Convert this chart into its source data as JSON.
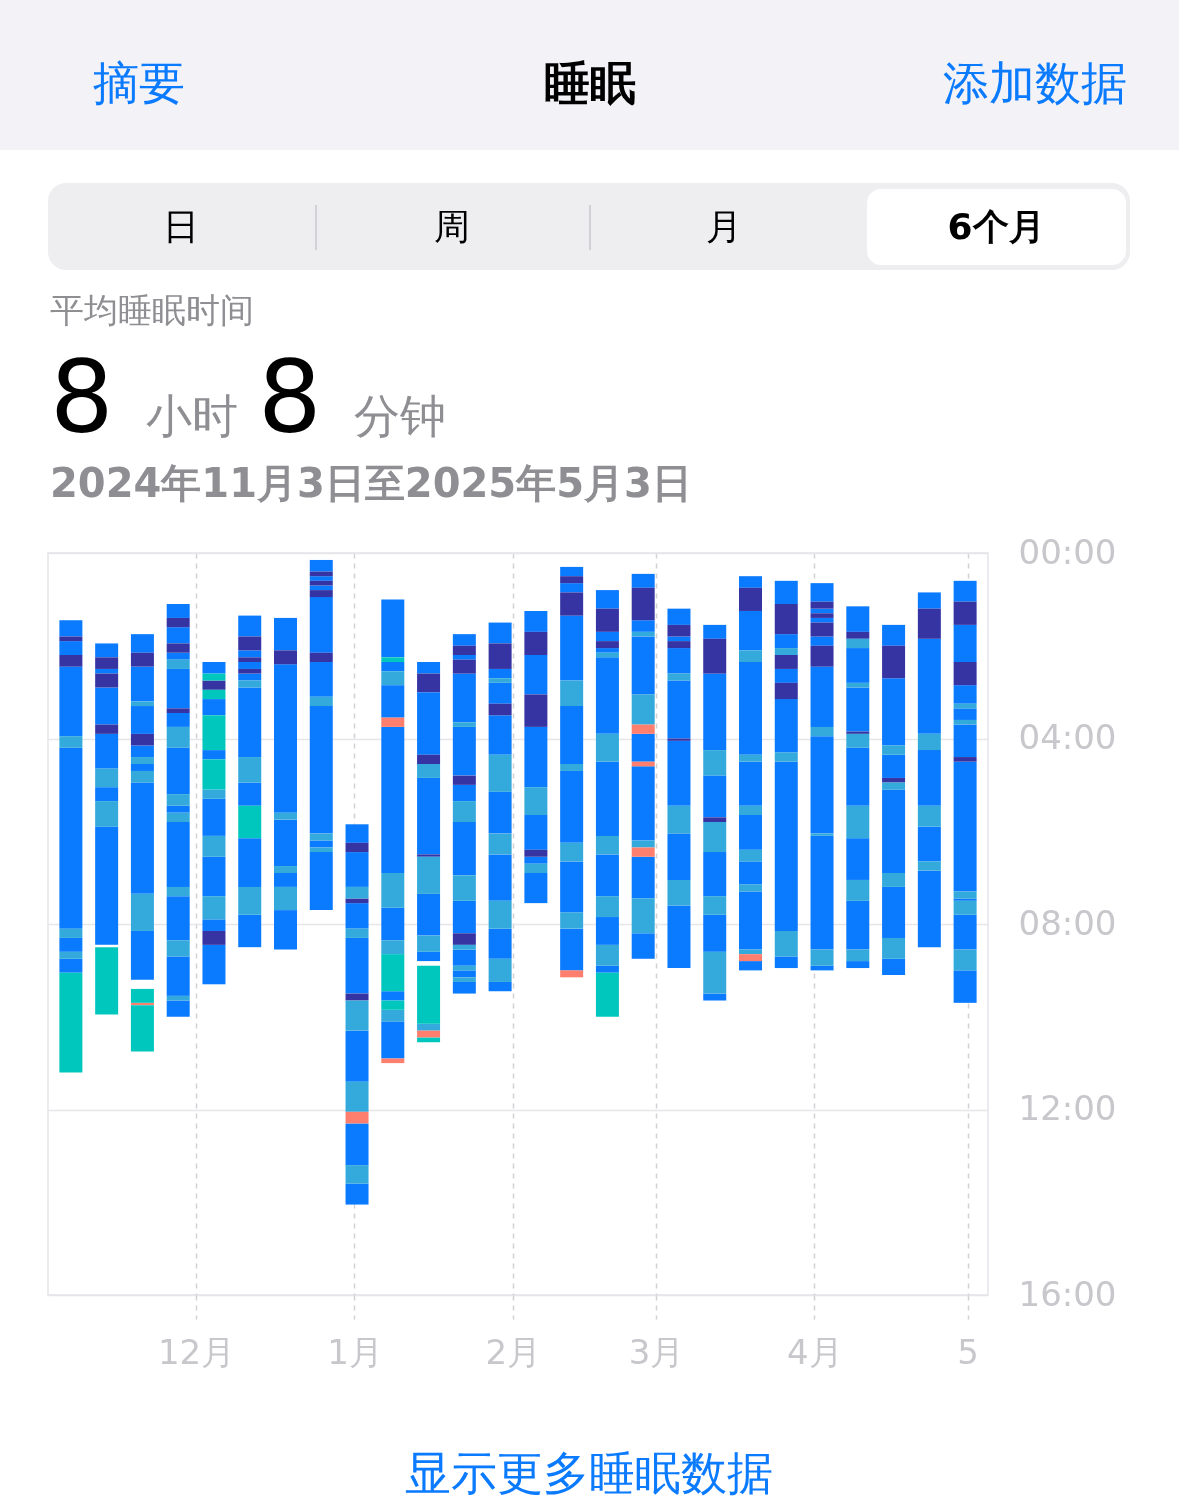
{
  "chart_data": {
    "type": "bar",
    "title": "睡眠",
    "annotations": [
      "摘要",
      "添加数据",
      "日",
      "周",
      "月",
      "6个月",
      "平均睡眠时间",
      "8 小时 8 分钟",
      "2024年11月3日至2025年5月3日",
      "显示更多睡眠数据"
    ],
    "x": [
      "2024-11-06T12:00",
      "2024-11-13T12:00",
      "2024-11-20T12:00",
      "2024-11-27T12:00",
      "2024-12-04T12:00",
      "2024-12-11T12:00",
      "2024-12-18T12:00",
      "2024-12-25T12:00",
      "2025-01-01T12:00",
      "2025-01-08T12:00",
      "2025-01-15T12:00",
      "2025-01-22T12:00",
      "2025-01-29T12:00",
      "2025-02-05T12:00",
      "2025-02-12T12:00",
      "2025-02-19T12:00",
      "2025-02-26T12:00",
      "2025-03-05T12:00",
      "2025-03-12T12:00",
      "2025-03-19T12:00",
      "2025-03-26T12:00",
      "2025-04-02T12:00",
      "2025-04-09T12:00",
      "2025-04-16T12:00",
      "2025-04-23T12:00",
      "2025-04-30T12:00"
    ],
    "xlim": [
      "2024-11-03",
      "2025-05-04"
    ],
    "xticks": [
      {
        "value": "2024-12-01",
        "label": "12月"
      },
      {
        "value": "2025-01-01",
        "label": "1月"
      },
      {
        "value": "2025-02-01",
        "label": "2月"
      },
      {
        "value": "2025-03-01",
        "label": "3月"
      },
      {
        "value": "2025-04-01",
        "label": "4月"
      },
      {
        "value": "2025-05-01",
        "label": "5"
      }
    ],
    "ylim": [
      16,
      0
    ],
    "yticks": [
      {
        "value": 0,
        "label": "00:00"
      },
      {
        "value": 4,
        "label": "04:00"
      },
      {
        "value": 8,
        "label": "08:00"
      },
      {
        "value": 12,
        "label": "12:00"
      },
      {
        "value": 16,
        "label": "16:00"
      }
    ],
    "grid": true,
    "series": [
      {
        "color": "#0a7aff",
        "base": [
          1.45,
          1.95,
          1.75,
          1.1,
          2.35,
          1.35,
          1.4,
          0.15,
          5.85,
          1.0,
          2.35,
          1.75,
          1.5,
          1.25,
          0.3,
          0.8,
          0.45,
          1.2,
          1.55,
          0.5,
          0.6,
          0.65,
          1.15,
          1.55,
          0.85,
          0.6
        ],
        "values": [
          0.35,
          0.3,
          0.4,
          0.3,
          0.25,
          0.45,
          0.7,
          0.25,
          0.4,
          1.25,
          0.25,
          0.25,
          0.45,
          0.45,
          0.2,
          0.4,
          0.3,
          0.35,
          0.3,
          0.25,
          0.5,
          0.4,
          0.55,
          0.45,
          0.35,
          0.45
        ]
      },
      {
        "color": "#0a7aff",
        "base": [
          1.9,
          2.5,
          2.45,
          1.6,
          3.15,
          2.1,
          2.4,
          0.5,
          6.45,
          2.35,
          3.0,
          2.2,
          2.5,
          2.2,
          0.65,
          1.7,
          1.45,
          1.8,
          2.6,
          1.25,
          1.75,
          1.2,
          2.05,
          2.7,
          1.85,
          1.55
        ],
        "values": [
          0.3,
          0.1,
          0.75,
          0.35,
          0.35,
          0.15,
          3.2,
          0.1,
          0.75,
          0.2,
          1.35,
          0.1,
          0.2,
          0.85,
          0.2,
          0.2,
          0.25,
          0.1,
          1.65,
          0.85,
          0.3,
          0.1,
          0.75,
          1.45,
          2.05,
          0.8
        ]
      },
      {
        "color": "#0a7aff",
        "base": [
          2.45,
          2.9,
          3.3,
          2.15,
          4.25,
          2.35,
          5.75,
          0.7,
          7.55,
          2.85,
          4.85,
          2.6,
          2.8,
          3.75,
          1.35,
          2.05,
          1.8,
          2.05,
          4.8,
          2.35,
          2.5,
          1.4,
          2.9,
          4.35,
          4.25,
          2.85
        ],
        "values": [
          1.5,
          0.8,
          0.6,
          0.15,
          0.2,
          0.15,
          1.0,
          0.1,
          0.55,
          0.7,
          1.65,
          1.05,
          0.45,
          1.3,
          1.4,
          0.1,
          1.25,
          0.55,
          0.9,
          2.0,
          0.3,
          0.1,
          0.95,
          0.5,
          1.2,
          0.4
        ]
      },
      {
        "color": "#0a7aff",
        "base": [
          4.2,
          3.9,
          4.15,
          2.5,
          5.3,
          2.6,
          6.9,
          0.95,
          8.3,
          3.75,
          7.35,
          3.75,
          3.5,
          5.65,
          3.3,
          2.25,
          3.9,
          2.75,
          6.45,
          4.5,
          3.15,
          1.8,
          4.2,
          5.1,
          5.9,
          3.35
        ],
        "values": [
          3.9,
          0.75,
          0.25,
          0.85,
          0.8,
          0.15,
          0.3,
          1.2,
          1.2,
          3.15,
          0.9,
          1.05,
          0.85,
          0.75,
          1.25,
          1.65,
          0.6,
          1.25,
          0.95,
          0.95,
          1.15,
          0.2,
          1.25,
          1.8,
          0.75,
          0.25
        ]
      },
      {
        "color": "#0a7aff",
        "base": [
          8.3,
          5.05,
          4.55,
          3.45,
          6.55,
          2.9,
          7.7,
          2.35,
          10.3,
          7.65,
          8.6,
          5.0,
          5.15,
          6.55,
          4.7,
          4.5,
          4.6,
          4.05,
          7.8,
          5.65,
          4.5,
          2.45,
          6.15,
          7.2,
          6.85,
          3.7
        ],
        "values": [
          0.3,
          0.3,
          0.15,
          0.3,
          0.85,
          1.5,
          0.85,
          0.75,
          1.1,
          0.7,
          0.2,
          0.35,
          0.9,
          0.15,
          1.55,
          1.6,
          1.6,
          1.4,
          0.8,
          0.75,
          3.65,
          1.3,
          0.9,
          1.1,
          1.65,
          0.7
        ]
      },
      {
        "color": "#0a7aff",
        "base": [
          8.75,
          5.9,
          4.95,
          4.2,
          7.9,
          4.95,
          null,
          3.3,
          12.3,
          9.45,
          null,
          5.8,
          6.5,
          6.9,
          6.65,
          6.5,
          6.55,
          6.05,
          9.5,
          6.65,
          8.7,
          3.95,
          7.5,
          8.75,
          null,
          4.5
        ],
        "values": [
          0.3,
          2.55,
          2.4,
          1.0,
          0.25,
          0.5,
          null,
          2.75,
          0.9,
          0.2,
          null,
          1.15,
          1.0,
          0.65,
          1.1,
          0.9,
          0.9,
          1.0,
          0.15,
          0.5,
          0.25,
          2.1,
          1.05,
          0.35,
          null,
          2.8
        ]
      },
      {
        "color": "#0a7aff",
        "base": [
          null,
          null,
          8.15,
          5.45,
          8.45,
          6.15,
          null,
          6.2,
          13.6,
          10.1,
          null,
          7.5,
          8.1,
          null,
          8.1,
          7.85,
          8.2,
          7.6,
          null,
          7.3,
          null,
          6.1,
          8.8,
          null,
          null,
          7.45
        ],
        "values": [
          null,
          null,
          1.05,
          0.15,
          0.85,
          1.05,
          null,
          0.15,
          0.45,
          0.8,
          null,
          0.7,
          0.65,
          null,
          0.9,
          0.6,
          0.55,
          1.35,
          null,
          1.25,
          null,
          2.45,
          0.15,
          null,
          null,
          0.05
        ]
      },
      {
        "color": "#0a7aff",
        "x": [
          "2024-11-27T12:00",
          "2024-12-11T12:00",
          "2024-12-25T12:00",
          "2025-01-22T12:00",
          "2025-01-29T12:00",
          "2025-02-19T12:00",
          "2025-03-19T12:00",
          "2025-04-02T12:00",
          "2025-04-30T12:00"
        ],
        "base": [
          5.8,
          7.8,
          6.45,
          8.55,
          9.25,
          8.9,
          8.8,
          8.9,
          7.8
        ],
        "values": [
          1.4,
          0.7,
          1.25,
          0.35,
          0.2,
          0.15,
          0.2,
          0.1,
          0.75
        ]
      },
      {
        "color": "#0a7aff",
        "x": [
          "2024-11-27T12:00",
          "2025-01-22T12:00",
          "2025-04-30T12:00"
        ],
        "base": [
          7.4,
          9.0,
          9.0
        ],
        "values": [
          0.95,
          0.15,
          0.7
        ]
      },
      {
        "color": "#0a7aff",
        "x": [
          "2024-11-27T12:00",
          "2025-01-22T12:00"
        ],
        "base": [
          8.7,
          9.25
        ],
        "values": [
          0.85,
          0.25
        ]
      },
      {
        "color": "#0a7aff",
        "x": [
          "2024-11-27T12:00"
        ],
        "base": [
          9.65
        ],
        "values": [
          0.35
        ]
      },
      {
        "color": "#3634a3",
        "base": [
          1.8,
          2.25,
          2.15,
          1.4,
          2.75,
          1.8,
          2.1,
          0.4,
          6.25,
          null,
          2.6,
          2.0,
          1.95,
          1.7,
          0.5,
          1.2,
          0.75,
          1.55,
          1.85,
          0.75,
          1.1,
          1.05,
          1.7,
          2.0,
          1.2,
          1.05
        ],
        "values": [
          0.1,
          0.25,
          0.3,
          0.2,
          0.2,
          0.3,
          0.3,
          0.1,
          0.2,
          null,
          0.4,
          0.2,
          0.55,
          0.5,
          0.15,
          0.5,
          0.7,
          0.25,
          0.75,
          0.5,
          0.65,
          0.15,
          0.15,
          0.7,
          0.65,
          0.5
        ]
      },
      {
        "color": "#3634a3",
        "base": [
          2.2,
          2.6,
          3.9,
          1.95,
          8.15,
          2.25,
          null,
          0.6,
          7.45,
          null,
          4.35,
          2.3,
          3.25,
          3.05,
          0.85,
          1.9,
          null,
          1.9,
          5.7,
          null,
          2.2,
          1.3,
          3.85,
          4.85,
          null,
          2.35
        ],
        "values": [
          0.25,
          0.3,
          0.25,
          0.2,
          0.3,
          0.1,
          null,
          0.1,
          0.1,
          null,
          0.2,
          0.3,
          0.25,
          0.7,
          0.5,
          0.15,
          null,
          0.15,
          0.1,
          null,
          0.3,
          0.1,
          0.05,
          0.1,
          null,
          0.5
        ]
      },
      {
        "color": "#3634a3",
        "base": [
          null,
          3.7,
          null,
          3.35,
          null,
          2.5,
          null,
          0.8,
          9.5,
          null,
          6.5,
          4.8,
          null,
          6.4,
          null,
          null,
          null,
          4.0,
          null,
          null,
          2.8,
          1.5,
          null,
          null,
          null,
          4.4
        ],
        "values": [
          null,
          0.2,
          null,
          0.1,
          null,
          0.1,
          null,
          0.15,
          0.15,
          null,
          0.05,
          0.2,
          null,
          0.15,
          null,
          null,
          null,
          0.05,
          null,
          null,
          0.35,
          0.3,
          null,
          null,
          null,
          0.1
        ]
      },
      {
        "color": "#3634a3",
        "x": [
          "2024-12-25T12:00",
          "2025-01-22T12:00",
          "2025-04-02T12:00"
        ],
        "base": [
          2.15,
          8.2,
          2.0
        ],
        "values": [
          0.2,
          0.25,
          0.45
        ]
      },
      {
        "color": "#34aadc",
        "base": [
          3.95,
          4.65,
          3.2,
          2.3,
          5.1,
          2.75,
          5.6,
          3.1,
          7.2,
          2.55,
          4.55,
          3.65,
          2.7,
          5.05,
          2.75,
          2.15,
          1.7,
          2.6,
          4.25,
          2.1,
          2.05,
          3.75,
          1.85,
          4.15,
          3.9,
          3.25
        ],
        "values": [
          0.25,
          0.4,
          0.1,
          0.2,
          0.2,
          0.15,
          0.15,
          0.2,
          0.25,
          0.3,
          0.3,
          0.1,
          0.1,
          0.6,
          0.55,
          0.1,
          0.1,
          0.15,
          0.55,
          0.25,
          0.15,
          0.2,
          0.2,
          0.2,
          0.35,
          0.1
        ]
      },
      {
        "color": "#34aadc",
        "base": [
          8.1,
          5.35,
          4.4,
          3.75,
          6.1,
          4.4,
          6.75,
          6.05,
          8.1,
          6.9,
          6.55,
          5.35,
          4.35,
          6.7,
          4.55,
          3.9,
          3.05,
          5.45,
          5.8,
          4.35,
          4.3,
          6.05,
          2.8,
          4.95,
          5.45,
          3.6
        ],
        "values": [
          0.2,
          0.55,
          0.15,
          0.45,
          0.45,
          0.55,
          0.15,
          0.15,
          0.2,
          0.75,
          0.8,
          0.45,
          0.8,
          0.2,
          0.15,
          0.6,
          0.65,
          0.6,
          0.65,
          0.15,
          0.2,
          0.05,
          0.1,
          0.15,
          0.45,
          0.1
        ]
      },
      {
        "color": "#34aadc",
        "base": [
          8.6,
          null,
          4.7,
          5.2,
          7.4,
          7.2,
          7.2,
          6.35,
          9.65,
          8.35,
          8.25,
          6.95,
          6.05,
          null,
          6.25,
          6.1,
          6.2,
          7.05,
          7.4,
          5.45,
          8.15,
          8.55,
          3.9,
          6.9,
          6.65,
          7.3
        ],
        "values": [
          0.15,
          null,
          0.25,
          0.25,
          0.5,
          0.6,
          0.5,
          0.1,
          0.65,
          0.3,
          0.35,
          0.55,
          0.45,
          null,
          0.4,
          0.4,
          0.15,
          0.55,
          0.4,
          0.2,
          0.55,
          0.35,
          0.3,
          0.3,
          0.2,
          0.15
        ]
      },
      {
        "color": "#34aadc",
        "base": [
          null,
          null,
          7.35,
          5.6,
          null,
          null,
          null,
          null,
          11.4,
          9.85,
          10.15,
          8.45,
          7.5,
          null,
          7.75,
          7.4,
          7.45,
          null,
          8.6,
          6.4,
          null,
          null,
          5.45,
          8.3,
          null,
          7.5
        ],
        "values": [
          null,
          null,
          0.8,
          0.2,
          null,
          null,
          null,
          null,
          0.65,
          0.25,
          0.15,
          0.1,
          0.6,
          null,
          0.35,
          0.45,
          0.75,
          null,
          0.9,
          0.25,
          null,
          null,
          0.7,
          0.45,
          null,
          0.3
        ]
      },
      {
        "color": "#34aadc",
        "x": [
          "2024-11-27T12:00",
          "2025-01-01T12:00",
          "2025-01-22T12:00",
          "2025-01-29T12:00",
          "2025-02-19T12:00",
          "2025-03-19T12:00",
          "2025-04-09T12:00",
          "2025-04-30T12:00"
        ],
        "base": [
          7.2,
          13.2,
          8.9,
          8.75,
          8.45,
          7.15,
          7.05,
          8.55
        ],
        "values": [
          0.2,
          0.4,
          0.1,
          0.5,
          0.45,
          0.15,
          0.45,
          0.45
        ]
      },
      {
        "color": "#34aadc",
        "x": [
          "2024-11-27T12:00",
          "2025-01-22T12:00",
          "2025-03-19T12:00",
          "2025-04-09T12:00"
        ],
        "base": [
          8.35,
          9.15,
          8.55,
          8.55
        ],
        "values": [
          0.35,
          0.1,
          0.1,
          0.25
        ]
      },
      {
        "color": "#34aadc",
        "x": [
          "2024-11-27T12:00"
        ],
        "base": [
          9.55
        ],
        "values": [
          0.1
        ]
      },
      {
        "color": "#ff7f6e",
        "x": [
          "2024-11-20T12:00",
          "2025-01-01T12:00",
          "2025-01-08T12:00",
          "2025-01-15T12:00",
          "2025-02-12T12:00",
          "2025-02-26T12:00",
          "2025-03-19T12:00"
        ],
        "base": [
          9.7,
          12.05,
          3.55,
          10.3,
          9.0,
          3.7,
          8.65
        ],
        "values": [
          0.05,
          0.25,
          0.2,
          0.15,
          0.15,
          0.2,
          0.15
        ]
      },
      {
        "color": "#ff7f6e",
        "x": [
          "2025-01-08T12:00",
          "2025-02-26T12:00"
        ],
        "base": [
          10.9,
          4.5
        ],
        "values": [
          0.1,
          0.1
        ]
      },
      {
        "color": "#ff7f6e",
        "x": [
          "2025-02-26T12:00"
        ],
        "base": [
          6.35
        ],
        "values": [
          0.2
        ]
      },
      {
        "color": "#00c7be",
        "x": [
          "2024-11-06T12:00",
          "2024-11-13T12:00",
          "2024-11-20T12:00",
          "2024-12-04T12:00",
          "2024-12-11T12:00",
          "2025-01-08T12:00",
          "2025-01-15T12:00",
          "2025-02-19T12:00"
        ],
        "base": [
          9.05,
          8.5,
          9.4,
          2.6,
          5.45,
          2.25,
          8.9,
          9.05
        ],
        "values": [
          2.15,
          1.45,
          0.3,
          0.15,
          0.7,
          0.1,
          1.25,
          0.95
        ]
      },
      {
        "color": "#00c7be",
        "x": [
          "2024-11-20T12:00",
          "2024-12-04T12:00",
          "2025-01-08T12:00",
          "2025-01-15T12:00"
        ],
        "base": [
          9.75,
          2.95,
          8.65,
          10.45
        ],
        "values": [
          1.0,
          0.2,
          0.8,
          0.1
        ]
      },
      {
        "color": "#00c7be",
        "x": [
          "2024-12-04T12:00",
          "2025-01-08T12:00"
        ],
        "base": [
          3.5,
          9.65
        ],
        "values": [
          0.75,
          0.2
        ]
      },
      {
        "color": "#00c7be",
        "x": [
          "2024-12-04T12:00"
        ],
        "base": [
          4.45
        ],
        "values": [
          0.65
        ]
      }
    ]
  }
}
